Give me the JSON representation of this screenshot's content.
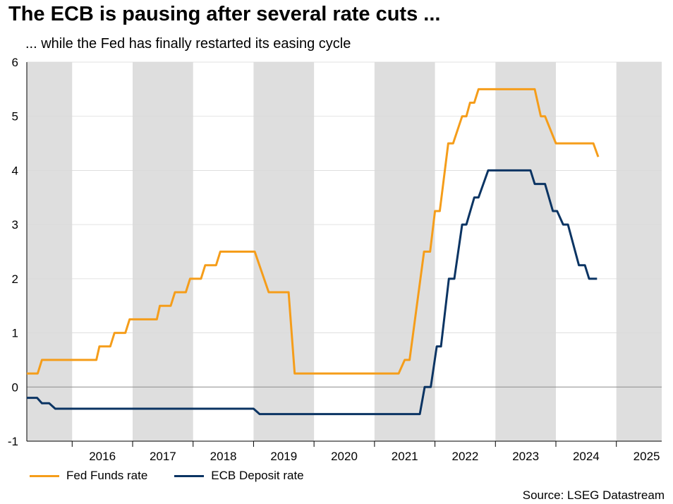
{
  "title": "The ECB is pausing after several rate cuts ...",
  "subtitle": "... while the Fed has finally restarted its easing cycle",
  "source": "Source: LSEG Datastream",
  "colors": {
    "fed": "#F59D1A",
    "ecb": "#0B3463",
    "band": "#DEDEDE",
    "grid": "#D9D9D9"
  },
  "chart_data": {
    "type": "line",
    "ylim": [
      -1,
      6
    ],
    "yticks": [
      "-1",
      "0",
      "1",
      "2",
      "3",
      "4",
      "5",
      "6"
    ],
    "xlim": [
      2015.25,
      2025.75
    ],
    "xticks": [
      "2016",
      "2017",
      "2018",
      "2019",
      "2020",
      "2021",
      "2022",
      "2023",
      "2024",
      "2025"
    ],
    "shaded_years": [
      2015,
      2017,
      2019,
      2021,
      2023,
      2025
    ],
    "grid": true,
    "legend_position": "bottom-left",
    "series": [
      {
        "name": "Fed Funds rate",
        "points": [
          [
            2015.25,
            0.25
          ],
          [
            2015.43,
            0.25
          ],
          [
            2015.5,
            0.5
          ],
          [
            2016.4,
            0.5
          ],
          [
            2016.45,
            0.75
          ],
          [
            2016.63,
            0.75
          ],
          [
            2016.7,
            1.0
          ],
          [
            2016.88,
            1.0
          ],
          [
            2016.95,
            1.25
          ],
          [
            2017.4,
            1.25
          ],
          [
            2017.45,
            1.5
          ],
          [
            2017.63,
            1.5
          ],
          [
            2017.7,
            1.75
          ],
          [
            2017.88,
            1.75
          ],
          [
            2017.95,
            2.0
          ],
          [
            2018.13,
            2.0
          ],
          [
            2018.2,
            2.25
          ],
          [
            2018.38,
            2.25
          ],
          [
            2018.45,
            2.5
          ],
          [
            2019.02,
            2.5
          ],
          [
            2019.25,
            1.75
          ],
          [
            2019.58,
            1.75
          ],
          [
            2019.68,
            0.25
          ],
          [
            2021.4,
            0.25
          ],
          [
            2021.5,
            0.5
          ],
          [
            2021.58,
            0.5
          ],
          [
            2021.82,
            2.5
          ],
          [
            2021.92,
            2.5
          ],
          [
            2022.0,
            3.25
          ],
          [
            2022.08,
            3.25
          ],
          [
            2022.22,
            4.5
          ],
          [
            2022.3,
            4.5
          ],
          [
            2022.45,
            5.0
          ],
          [
            2022.52,
            5.0
          ],
          [
            2022.58,
            5.25
          ],
          [
            2022.65,
            5.25
          ],
          [
            2022.72,
            5.5
          ],
          [
            2023.65,
            5.5
          ],
          [
            2023.75,
            5.0
          ],
          [
            2023.82,
            5.0
          ],
          [
            2024.0,
            4.5
          ],
          [
            2024.62,
            4.5
          ],
          [
            2024.7,
            4.25
          ]
        ]
      },
      {
        "name": "ECB Deposit rate",
        "points": [
          [
            2015.25,
            -0.2
          ],
          [
            2015.42,
            -0.2
          ],
          [
            2015.5,
            -0.3
          ],
          [
            2015.62,
            -0.3
          ],
          [
            2015.72,
            -0.4
          ],
          [
            2019.0,
            -0.4
          ],
          [
            2019.1,
            -0.5
          ],
          [
            2021.75,
            -0.5
          ],
          [
            2021.83,
            0.0
          ],
          [
            2021.93,
            0.0
          ],
          [
            2022.03,
            0.75
          ],
          [
            2022.1,
            0.75
          ],
          [
            2022.23,
            2.0
          ],
          [
            2022.32,
            2.0
          ],
          [
            2022.45,
            3.0
          ],
          [
            2022.52,
            3.0
          ],
          [
            2022.65,
            3.5
          ],
          [
            2022.72,
            3.5
          ],
          [
            2022.88,
            4.0
          ],
          [
            2023.58,
            4.0
          ],
          [
            2023.65,
            3.75
          ],
          [
            2023.82,
            3.75
          ],
          [
            2023.95,
            3.25
          ],
          [
            2024.02,
            3.25
          ],
          [
            2024.12,
            3.0
          ],
          [
            2024.2,
            3.0
          ],
          [
            2024.38,
            2.25
          ],
          [
            2024.48,
            2.25
          ],
          [
            2024.55,
            2.0
          ],
          [
            2024.68,
            2.0
          ]
        ]
      }
    ]
  }
}
